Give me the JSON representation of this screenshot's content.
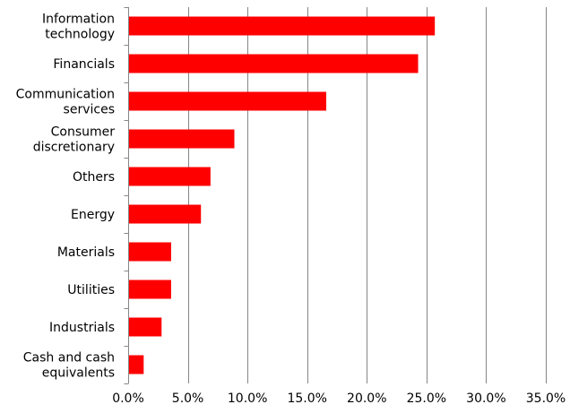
{
  "chart_data": {
    "type": "bar",
    "orientation": "horizontal",
    "title": "",
    "xlabel": "",
    "ylabel": "",
    "categories": [
      [
        "Information",
        "technology"
      ],
      [
        "Financials"
      ],
      [
        "Communication",
        "services"
      ],
      [
        "Consumer",
        "discretionary"
      ],
      [
        "Others"
      ],
      [
        "Energy"
      ],
      [
        "Materials"
      ],
      [
        "Utilities"
      ],
      [
        "Industrials"
      ],
      [
        "Cash and cash",
        "equivalents"
      ]
    ],
    "values": [
      25.7,
      24.3,
      16.6,
      8.9,
      6.9,
      6.1,
      3.6,
      3.6,
      2.8,
      1.3
    ],
    "xlim": [
      0,
      35
    ],
    "xticks": [
      0,
      5,
      10,
      15,
      20,
      25,
      30,
      35
    ],
    "xtick_labels": [
      "0.0%",
      "5.0%",
      "10.0%",
      "15.0%",
      "20.0%",
      "25.0%",
      "30.0%",
      "35.0%"
    ],
    "grid": "vertical",
    "legend": "none",
    "bar_color": "#FF0000",
    "grid_color": "#868686"
  }
}
